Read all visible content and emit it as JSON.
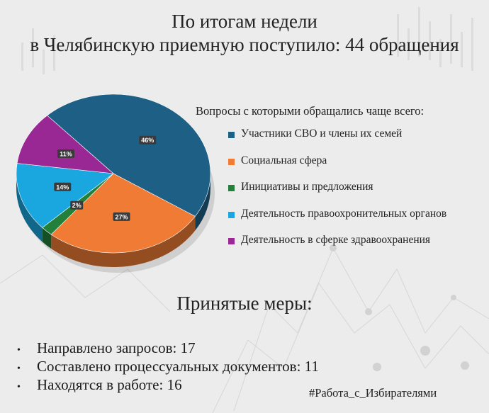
{
  "title_line1": "По итогам недели",
  "title_line2": "в Челябинскую приемную поступило: 44 обращения",
  "legend_title": "Вопросы с которыми обращались чаще всего:",
  "chart_data": {
    "type": "pie",
    "slices": [
      {
        "label": "Участники СВО и члены их семей",
        "value": 46,
        "display": "46%",
        "color": "#1e5f85"
      },
      {
        "label": "Социальная сфера",
        "value": 27,
        "display": "27%",
        "color": "#ef7b35"
      },
      {
        "label": "Инициативы и предложения",
        "value": 2,
        "display": "2%",
        "color": "#22803a"
      },
      {
        "label": "Деятельность правоохронительных органов",
        "value": 14,
        "display": "14%",
        "color": "#1aa6de"
      },
      {
        "label": "Деятельность в сферке здравоохранения",
        "value": 11,
        "display": "11%",
        "color": "#9a2894"
      }
    ],
    "legend_placement": "right"
  },
  "measures_title": "Принятые меры:",
  "bullet_glyph": "•",
  "measures": [
    "Направлено запросов: 17",
    "Составлено процессуальных документов: 11",
    "Находятся в работе: 16"
  ],
  "hashtag": "#Работа_с_Избирателями"
}
